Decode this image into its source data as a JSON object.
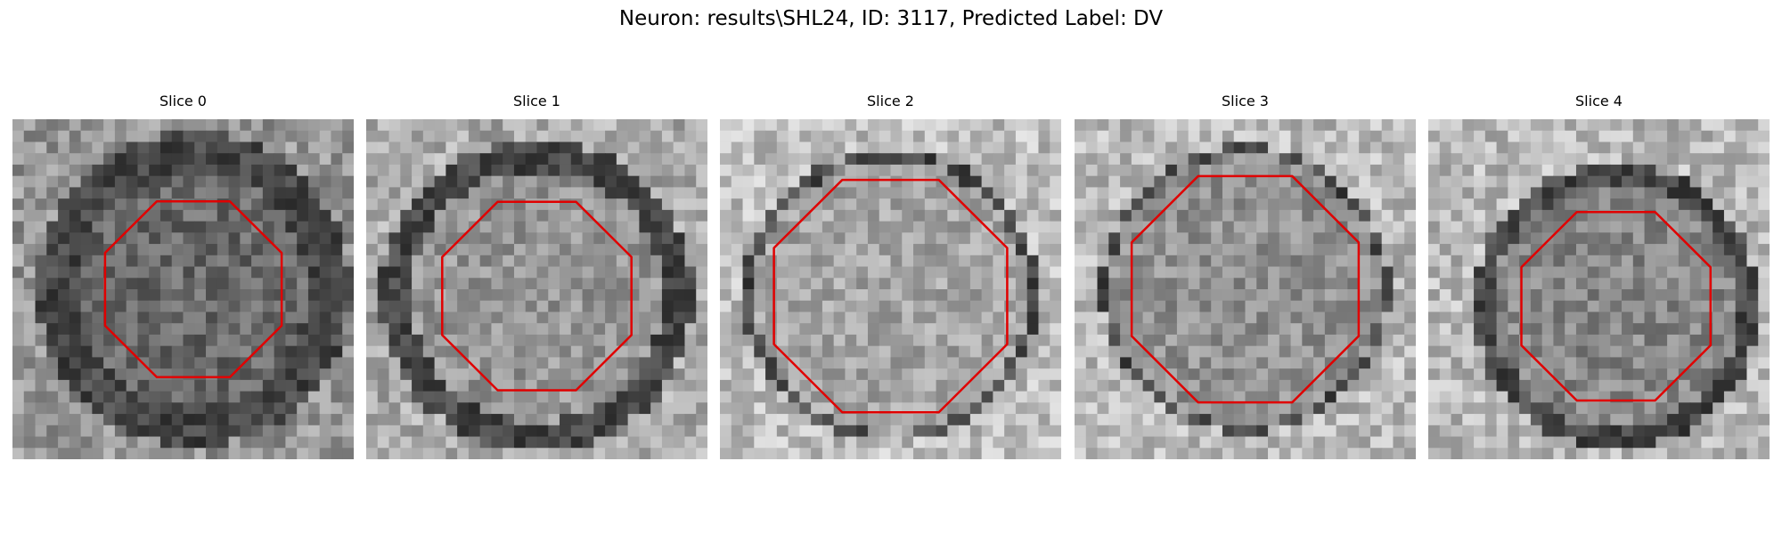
{
  "figure": {
    "title": "Neuron: results\\SHL24, ID: 3117, Predicted Label: DV"
  },
  "panels": [
    {
      "title": "Slice 0"
    },
    {
      "title": "Slice 1"
    },
    {
      "title": "Slice 2"
    },
    {
      "title": "Slice 3"
    },
    {
      "title": "Slice 4"
    }
  ],
  "contour_color": "#e00000"
}
